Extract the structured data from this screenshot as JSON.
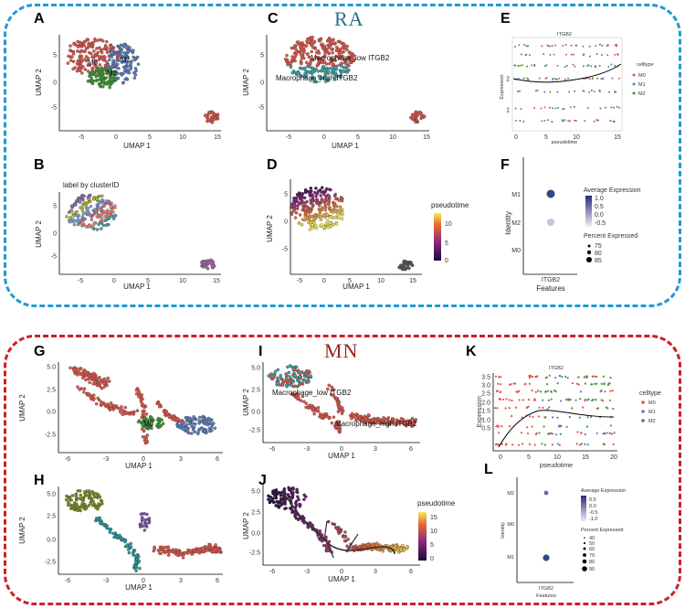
{
  "groups": {
    "ra": {
      "title": "RA",
      "color": "#1f9ad6",
      "title_color": "#2e6e82"
    },
    "mn": {
      "title": "MN",
      "color": "#cc2027",
      "title_color": "#9b1f1f"
    }
  },
  "colors": {
    "m0": "#e0564c",
    "m1": "#5b7fbf",
    "m2": "#3a9a2e"
  },
  "panels": {
    "A": {
      "letter": "A",
      "xlabel": "UMAP 1",
      "ylabel": "UMAP 2",
      "xticks": [
        "-5",
        "0",
        "5",
        "10",
        "15"
      ],
      "yticks": [
        "5",
        "0",
        "-5"
      ],
      "cluster_labels": [
        "M0",
        "M1",
        "M2"
      ]
    },
    "B": {
      "letter": "B",
      "title": "label by clusterID",
      "xlabel": "UMAP 1",
      "ylabel": "UMAP 2",
      "xticks": [
        "-5",
        "0",
        "5",
        "10",
        "15"
      ],
      "yticks": [
        "5",
        "0",
        "-5"
      ]
    },
    "C": {
      "letter": "C",
      "xlabel": "UMAP 1",
      "ylabel": "UMAP 2",
      "xticks": [
        "-5",
        "0",
        "5",
        "10",
        "15"
      ],
      "yticks": [
        "5",
        "0",
        "-5"
      ],
      "annotations": [
        "Macrophage_low ITGB2",
        "Macrophage_high ITGB2"
      ]
    },
    "D": {
      "letter": "D",
      "xlabel": "UMAP 1",
      "ylabel": "UMAP 2",
      "xticks": [
        "-5",
        "0",
        "5",
        "10",
        "15"
      ],
      "yticks": [
        "5",
        "0",
        "-5"
      ],
      "legend_title": "pseudotime",
      "legend_ticks": [
        "10",
        "5",
        "0"
      ]
    },
    "E": {
      "letter": "E",
      "title": "ITGB2",
      "xlabel": "pseudotime",
      "ylabel": "Expression",
      "xticks": [
        "0",
        "5",
        "10",
        "15"
      ],
      "yticks": [
        "2",
        "1"
      ],
      "legend_title": "celltype",
      "legend_items": [
        "M0",
        "M1",
        "M2"
      ]
    },
    "F": {
      "letter": "F",
      "xlabel": "Features",
      "ylabel": "Identity",
      "feature": "ITGB2",
      "rows": [
        "M1",
        "M2",
        "M0"
      ],
      "avg_title": "Average Expression",
      "avg_ticks": [
        "1.0",
        "0.5",
        "0.0",
        "-0.5"
      ],
      "pct_title": "Percent Expressed",
      "pct_items": [
        "75",
        "80",
        "85"
      ]
    },
    "G": {
      "letter": "G",
      "xlabel": "UMAP 1",
      "ylabel": "UMAP 2",
      "xticks": [
        "-6",
        "-3",
        "0",
        "3",
        "6"
      ],
      "yticks": [
        "5.0",
        "2.5",
        "0.0",
        "-2.5"
      ],
      "cluster_labels": [
        "M0"
      ]
    },
    "H": {
      "letter": "H",
      "xlabel": "UMAP 1",
      "ylabel": "UMAP 2",
      "xticks": [
        "-6",
        "-3",
        "0",
        "3",
        "6"
      ],
      "yticks": [
        "5.0",
        "2.5",
        "0.0",
        "-2.5"
      ]
    },
    "I": {
      "letter": "I",
      "xlabel": "UMAP 1",
      "ylabel": "UMAP 2",
      "xticks": [
        "-6",
        "-3",
        "0",
        "3",
        "6"
      ],
      "yticks": [
        "5.0",
        "2.5",
        "0.0",
        "-2.5"
      ],
      "annotations": [
        "Macrophage_low ITGB2",
        "Macrophage_high ITGB2"
      ]
    },
    "J": {
      "letter": "J",
      "xlabel": "UMAP 1",
      "ylabel": "UMAP 2",
      "xticks": [
        "-6",
        "-3",
        "0",
        "3",
        "6"
      ],
      "yticks": [
        "5.0",
        "2.5",
        "0.0",
        "-2.5"
      ],
      "legend_title": "pseudotime",
      "legend_ticks": [
        "15",
        "10",
        "5",
        "0"
      ]
    },
    "K": {
      "letter": "K",
      "title": "ITGB2",
      "xlabel": "pseudotime",
      "ylabel": "Expression",
      "xticks": [
        "0",
        "5",
        "10",
        "15",
        "20"
      ],
      "yticks": [
        "3.5",
        "3.0",
        "2.5",
        "2.0",
        "1.5",
        "1.0",
        "0.5"
      ],
      "legend_title": "celltype",
      "legend_items": [
        "M0",
        "M1",
        "M2"
      ]
    },
    "L": {
      "letter": "L",
      "xlabel": "Features",
      "ylabel": "Identity",
      "feature": "ITGB2",
      "rows": [
        "M2",
        "M0",
        "M1"
      ],
      "avg_title": "Average Expression",
      "avg_ticks": [
        "0.5",
        "0.0",
        "-0.5",
        "-1.0"
      ],
      "pct_title": "Percent Expressed",
      "pct_items": [
        "40",
        "50",
        "60",
        "70",
        "80",
        "90"
      ]
    }
  }
}
